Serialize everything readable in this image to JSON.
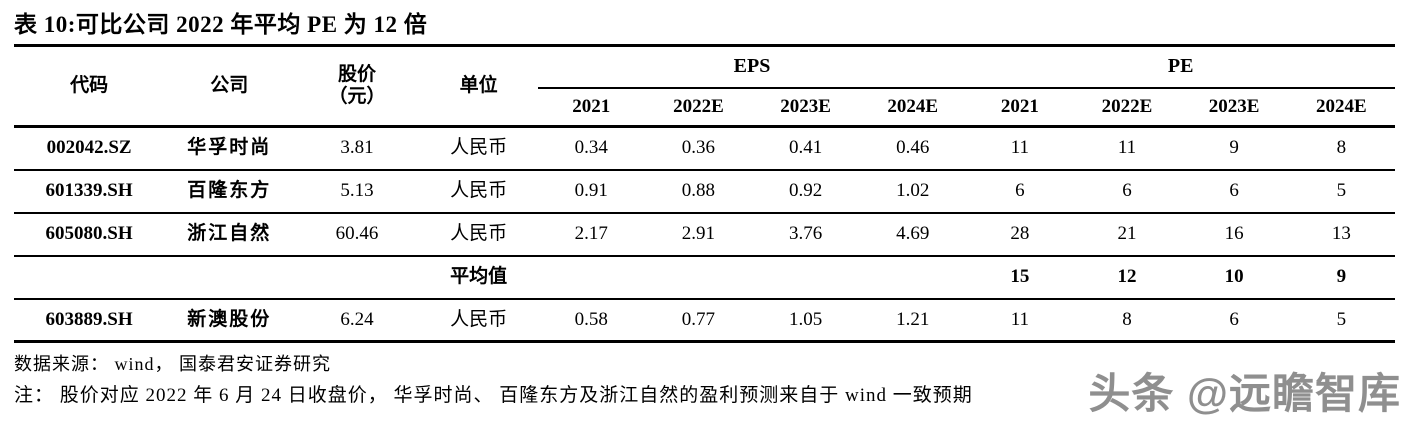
{
  "title": "表 10:可比公司 2022 年平均 PE 为 12 倍",
  "table": {
    "headers": {
      "code": "代码",
      "company": "公司",
      "price_line1": "股价",
      "price_line2": "（元）",
      "unit": "单位",
      "eps_group": "EPS",
      "pe_group": "PE",
      "years": [
        "2021",
        "2022E",
        "2023E",
        "2024E"
      ]
    },
    "rows": [
      {
        "code": "002042.SZ",
        "company": "华孚时尚",
        "price": "3.81",
        "unit": "人民币",
        "eps": [
          "0.34",
          "0.36",
          "0.41",
          "0.46"
        ],
        "pe": [
          "11",
          "11",
          "9",
          "8"
        ]
      },
      {
        "code": "601339.SH",
        "company": "百隆东方",
        "price": "5.13",
        "unit": "人民币",
        "eps": [
          "0.91",
          "0.88",
          "0.92",
          "1.02"
        ],
        "pe": [
          "6",
          "6",
          "6",
          "5"
        ]
      },
      {
        "code": "605080.SH",
        "company": "浙江自然",
        "price": "60.46",
        "unit": "人民币",
        "eps": [
          "2.17",
          "2.91",
          "3.76",
          "4.69"
        ],
        "pe": [
          "28",
          "21",
          "16",
          "13"
        ]
      },
      {
        "code": "",
        "company": "",
        "price": "",
        "unit": "平均值",
        "eps": [
          "",
          "",
          "",
          ""
        ],
        "pe": [
          "15",
          "12",
          "10",
          "9"
        ]
      },
      {
        "code": "603889.SH",
        "company": "新澳股份",
        "price": "6.24",
        "unit": "人民币",
        "eps": [
          "0.58",
          "0.77",
          "1.05",
          "1.21"
        ],
        "pe": [
          "11",
          "8",
          "6",
          "5"
        ]
      }
    ]
  },
  "footer": {
    "source": "数据来源： wind， 国泰君安证券研究",
    "note": "注： 股价对应 2022 年 6 月 24 日收盘价， 华孚时尚、 百隆东方及浙江自然的盈利预测来自于 wind 一致预期"
  },
  "watermark": {
    "text": "头条 @远瞻智库",
    "color": "#8f8f8f"
  }
}
